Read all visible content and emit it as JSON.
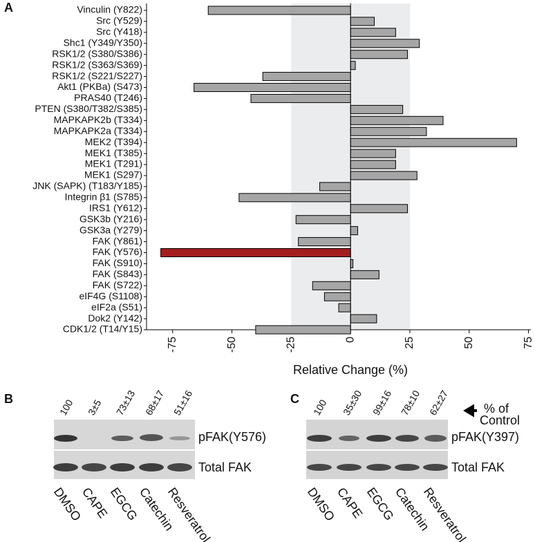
{
  "chart_data": {
    "type": "bar",
    "orientation": "horizontal",
    "panel": "A",
    "categories": [
      "Vinculin (Y822)",
      "Src (Y529)",
      "Src (Y418)",
      "Shc1 (Y349/Y350)",
      "RSK1/2 (S380/S386)",
      "RSK1/2 (S363/S369)",
      "RSK1/2 (S221/S227)",
      "Akt1 (PKBa)  (S473)",
      "PRAS40 (T246)",
      "PTEN (S380/T382/S385)",
      "MAPKAPK2b (T334)",
      "MAPKAPK2a (T334)",
      "MEK2 (T394)",
      "MEK1 (T385)",
      "MEK1 (T291)",
      "MEK1 (S297)",
      "JNK (SAPK) (T183/Y185)",
      "Integrin β1 (S785)",
      "IRS1 (Y612)",
      "GSK3b (Y216)",
      "GSK3a (Y279)",
      "FAK (Y861)",
      "FAK (Y576)",
      "FAK (S910)",
      "FAK (S843)",
      "FAK (S722)",
      "eIF4G (S1108)",
      "eIF2a (S51)",
      "Dok2 (Y142)",
      "CDK1/2 (T14/Y15)"
    ],
    "values": [
      -60,
      10,
      19,
      29,
      24,
      2,
      -37,
      -66,
      -42,
      22,
      39,
      32,
      70,
      19,
      19,
      28,
      -13,
      -47,
      24,
      -23,
      3,
      -22,
      -80,
      1,
      12,
      -16,
      -11,
      -5,
      11,
      -40
    ],
    "colors": [
      "#a6a6a6",
      "#a6a6a6",
      "#a6a6a6",
      "#a6a6a6",
      "#a6a6a6",
      "#a6a6a6",
      "#a6a6a6",
      "#a6a6a6",
      "#a6a6a6",
      "#a6a6a6",
      "#a6a6a6",
      "#a6a6a6",
      "#a6a6a6",
      "#a6a6a6",
      "#a6a6a6",
      "#a6a6a6",
      "#a6a6a6",
      "#a6a6a6",
      "#a6a6a6",
      "#a6a6a6",
      "#a6a6a6",
      "#a6a6a6",
      "#a31f1f",
      "#a6a6a6",
      "#a6a6a6",
      "#a6a6a6",
      "#a6a6a6",
      "#a6a6a6",
      "#a6a6a6",
      "#a6a6a6"
    ],
    "xlabel": "Relative Change (%)",
    "xlim": [
      -86,
      76
    ],
    "xticks": [
      -75,
      -50,
      -25,
      0,
      25,
      50,
      75
    ],
    "shaded_band": [
      -25,
      25
    ],
    "shade_color": "#ebecee"
  },
  "panel_b": {
    "letter": "B",
    "quantities": [
      "100",
      "3±5",
      "73±13",
      "68±17",
      "51±16"
    ],
    "rows": [
      "pFAK(Y576)",
      "Total FAK"
    ],
    "lanes": [
      "DMSO",
      "CAPE",
      "EGCG",
      "Catechin",
      "Resveratrol"
    ]
  },
  "panel_c": {
    "letter": "C",
    "quantities": [
      "100",
      "35±30",
      "99±16",
      "78±10",
      "62±27"
    ],
    "rows": [
      "pFAK(Y397)",
      "Total FAK"
    ],
    "lanes": [
      "DMSO",
      "CAPE",
      "EGCG",
      "Catechin",
      "Resveratrol"
    ],
    "annotation": [
      "% of",
      "Control"
    ]
  }
}
